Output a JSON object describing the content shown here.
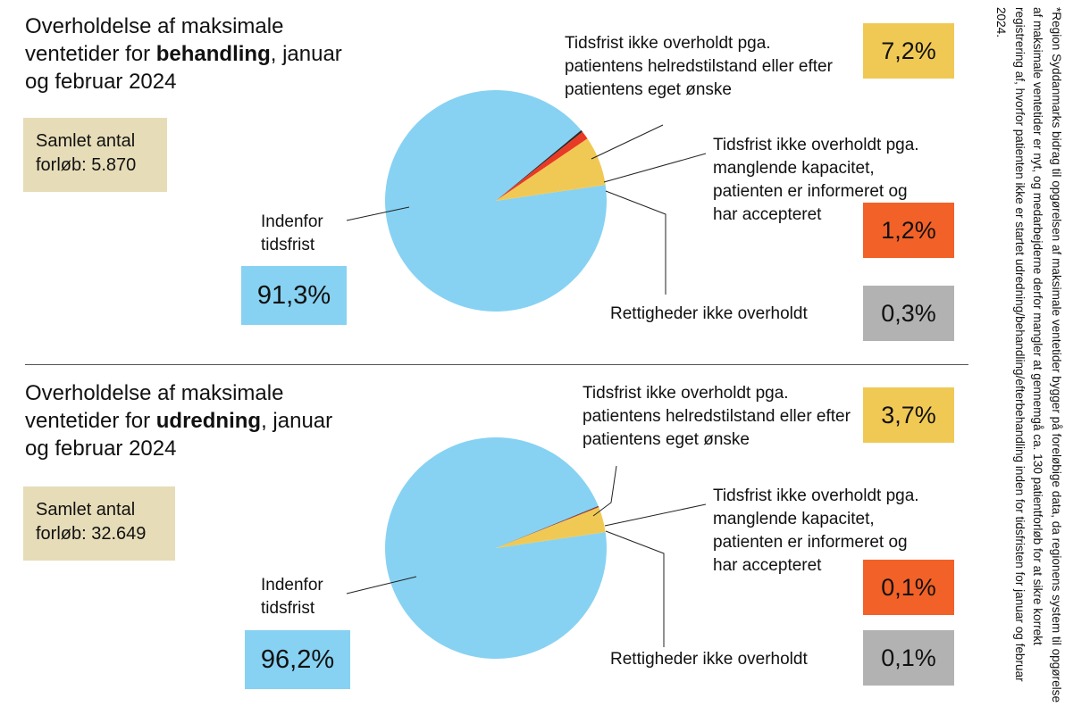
{
  "colors": {
    "inside": "#87d2f2",
    "helbred": "#f0c955",
    "kapacitet": "#e93a25",
    "kapacitet_box": "#f26127",
    "rettigheder": "#2a2a2a",
    "rettigheder_box": "#b2b2b2",
    "total_box": "#e6dcb8"
  },
  "charts": [
    {
      "title_pre": "Overholdelse af maksimale ventetider for ",
      "title_bold": "behandling",
      "title_post": ", januar og februar 2024",
      "total": "Samlet antal forløb: 5.870",
      "inside_label": "Indenfor tidsfrist",
      "inside_pct": "91,3%",
      "helbred_label": "Tidsfrist ikke overholdt pga. patientens helredstilstand eller efter patientens eget ønske",
      "helbred_pct": "7,2%",
      "kapacitet_label": "Tidsfrist ikke overholdt pga. manglende kapacitet, patienten er informeret og har accepteret",
      "kapacitet_pct": "1,2%",
      "rettigheder_label": "Rettigheder ikke overholdt",
      "rettigheder_pct": "0,3%"
    },
    {
      "title_pre": "Overholdelse af maksimale ventetider for ",
      "title_bold": "udredning",
      "title_post": ", januar og februar 2024",
      "total": "Samlet antal forløb: 32.649",
      "inside_label": "Indenfor tidsfrist",
      "inside_pct": "96,2%",
      "helbred_label": "Tidsfrist ikke overholdt pga. patientens helredstilstand eller efter patientens eget ønske",
      "helbred_pct": "3,7%",
      "kapacitet_label": "Tidsfrist ikke overholdt pga. manglende kapacitet, patienten er informeret og har accepteret",
      "kapacitet_pct": "0,1%",
      "rettigheder_label": "Rettigheder ikke overholdt",
      "rettigheder_pct": "0,1%"
    }
  ],
  "chart_data": [
    {
      "type": "pie",
      "title": "Overholdelse af maksimale ventetider for behandling, januar og februar 2024",
      "categories": [
        "Indenfor tidsfrist",
        "Tidsfrist ikke overholdt pga. patientens helredstilstand eller efter patientens eget ønske",
        "Tidsfrist ikke overholdt pga. manglende kapacitet, patienten er informeret og har accepteret",
        "Rettigheder ikke overholdt"
      ],
      "values": [
        91.3,
        7.2,
        1.2,
        0.3
      ]
    },
    {
      "type": "pie",
      "title": "Overholdelse af maksimale ventetider for udredning, januar og februar 2024",
      "categories": [
        "Indenfor tidsfrist",
        "Tidsfrist ikke overholdt pga. patientens helredstilstand eller efter patientens eget ønske",
        "Tidsfrist ikke overholdt pga. manglende kapacitet, patienten er informeret og har accepteret",
        "Rettigheder ikke overholdt"
      ],
      "values": [
        96.2,
        3.7,
        0.1,
        0.1
      ]
    }
  ],
  "footnote": "*Region Syddanmarks bidrag til opgørelsen af maksimale ventetider bygger på foreløbige data, da regionens system til opgørelse af maksimale ventetider er nyt, og medarbejderne derfor mangler at gennemgå ca. 130 patientforløb for at sikre korrekt registrering af, hvorfor patienten ikke er startet udredning/behandling/efterbehandling inden for tidsfristen for januar og februar 2024."
}
